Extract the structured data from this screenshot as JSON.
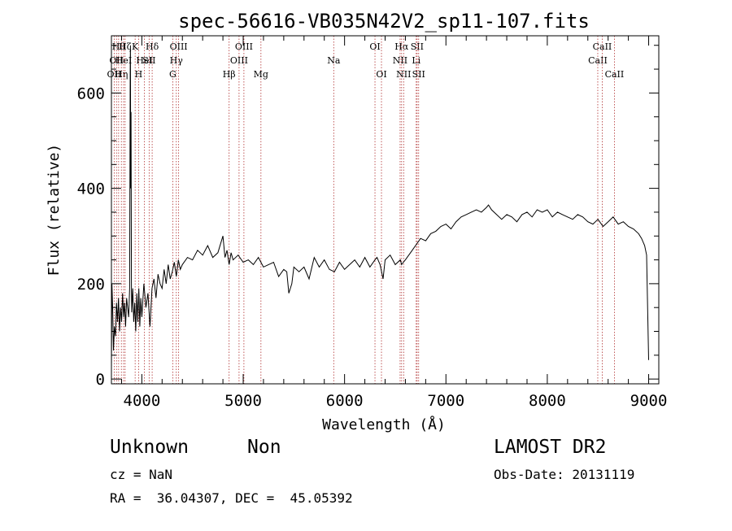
{
  "chart_data": {
    "type": "line",
    "title": "spec-56616-VB035N42V2_sp11-107.fits",
    "xlabel": "Wavelength (Å)",
    "ylabel": "Flux (relative)",
    "xlim": [
      3700,
      9100
    ],
    "ylim": [
      -10,
      720
    ],
    "x_ticks": [
      4000,
      5000,
      6000,
      7000,
      8000,
      9000
    ],
    "y_ticks": [
      0,
      200,
      400,
      600
    ],
    "grid": false,
    "series": [
      {
        "x": [
          3700,
          3705,
          3712,
          3720,
          3730,
          3740,
          3750,
          3760,
          3770,
          3780,
          3790,
          3800,
          3810,
          3820,
          3830,
          3840,
          3850,
          3860,
          3870,
          3880,
          3885,
          3888,
          3890,
          3893,
          3897,
          3900,
          3910,
          3920,
          3930,
          3940,
          3950,
          3960,
          3970,
          3980,
          3990,
          4000,
          4020,
          4040,
          4060,
          4080,
          4100,
          4120,
          4140,
          4160,
          4180,
          4200,
          4220,
          4240,
          4260,
          4280,
          4300,
          4320,
          4340,
          4360,
          4380,
          4400,
          4450,
          4500,
          4550,
          4600,
          4650,
          4700,
          4750,
          4800,
          4820,
          4840,
          4861,
          4880,
          4900,
          4950,
          5000,
          5050,
          5100,
          5150,
          5200,
          5250,
          5300,
          5350,
          5400,
          5430,
          5450,
          5480,
          5500,
          5550,
          5600,
          5650,
          5700,
          5750,
          5800,
          5850,
          5900,
          5950,
          6000,
          6050,
          6100,
          6150,
          6200,
          6250,
          6300,
          6320,
          6350,
          6380,
          6400,
          6450,
          6500,
          6550,
          6563,
          6580,
          6600,
          6650,
          6700,
          6750,
          6800,
          6850,
          6900,
          6950,
          7000,
          7050,
          7100,
          7150,
          7200,
          7250,
          7300,
          7350,
          7400,
          7420,
          7450,
          7500,
          7550,
          7600,
          7650,
          7700,
          7750,
          7800,
          7850,
          7900,
          7950,
          8000,
          8050,
          8100,
          8150,
          8200,
          8250,
          8300,
          8350,
          8400,
          8450,
          8500,
          8550,
          8600,
          8650,
          8700,
          8750,
          8800,
          8850,
          8900,
          8930,
          8960,
          8980,
          9000
        ],
        "values": [
          20,
          200,
          150,
          60,
          110,
          90,
          160,
          120,
          170,
          100,
          150,
          120,
          180,
          130,
          160,
          110,
          170,
          150,
          130,
          190,
          660,
          700,
          400,
          560,
          200,
          140,
          190,
          120,
          160,
          100,
          180,
          120,
          190,
          110,
          170,
          130,
          200,
          150,
          180,
          110,
          190,
          210,
          170,
          220,
          200,
          190,
          230,
          200,
          240,
          210,
          225,
          245,
          215,
          250,
          230,
          240,
          255,
          250,
          270,
          260,
          280,
          255,
          265,
          300,
          255,
          270,
          240,
          265,
          250,
          260,
          245,
          250,
          240,
          255,
          235,
          240,
          245,
          215,
          230,
          225,
          180,
          200,
          235,
          225,
          235,
          210,
          255,
          235,
          250,
          230,
          225,
          245,
          230,
          240,
          250,
          235,
          255,
          235,
          250,
          255,
          240,
          210,
          250,
          260,
          240,
          250,
          240,
          245,
          250,
          265,
          280,
          295,
          290,
          305,
          310,
          320,
          325,
          315,
          330,
          340,
          345,
          350,
          355,
          350,
          360,
          365,
          355,
          345,
          335,
          345,
          340,
          330,
          345,
          350,
          340,
          355,
          350,
          355,
          340,
          350,
          345,
          340,
          335,
          345,
          340,
          330,
          325,
          335,
          320,
          330,
          340,
          325,
          330,
          320,
          315,
          305,
          295,
          280,
          260,
          40
        ]
      }
    ],
    "line_markers": [
      {
        "wavelength": 3727,
        "label": "OII",
        "row": 2
      },
      {
        "wavelength": 3750,
        "label": "OII",
        "row": 1
      },
      {
        "wavelength": 3771,
        "label": "Hθ",
        "row": 0
      },
      {
        "wavelength": 3798,
        "label": "Hη",
        "row": 2
      },
      {
        "wavelength": 3820,
        "label": "HeI",
        "row": 1
      },
      {
        "wavelength": 3835,
        "label": "Hζ",
        "row": 0
      },
      {
        "wavelength": 3934,
        "label": "K",
        "row": 0
      },
      {
        "wavelength": 3968,
        "label": "H",
        "row": 2
      },
      {
        "wavelength": 4026,
        "label": "HeI",
        "row": 1
      },
      {
        "wavelength": 4072,
        "label": "SII",
        "row": 1
      },
      {
        "wavelength": 4102,
        "label": "Hδ",
        "row": 0
      },
      {
        "wavelength": 4305,
        "label": "G",
        "row": 2
      },
      {
        "wavelength": 4340,
        "label": "Hγ",
        "row": 1
      },
      {
        "wavelength": 4363,
        "label": "OIII",
        "row": 0
      },
      {
        "wavelength": 4861,
        "label": "Hβ",
        "row": 2
      },
      {
        "wavelength": 4959,
        "label": "OIII",
        "row": 1
      },
      {
        "wavelength": 5007,
        "label": "OIII",
        "row": 0
      },
      {
        "wavelength": 5175,
        "label": "Mg",
        "row": 2
      },
      {
        "wavelength": 5893,
        "label": "Na",
        "row": 1
      },
      {
        "wavelength": 6300,
        "label": "OI",
        "row": 0
      },
      {
        "wavelength": 6364,
        "label": "OI",
        "row": 2
      },
      {
        "wavelength": 6548,
        "label": "NII",
        "row": 1
      },
      {
        "wavelength": 6563,
        "label": "Hα",
        "row": 0
      },
      {
        "wavelength": 6583,
        "label": "NII",
        "row": 2
      },
      {
        "wavelength": 6707,
        "label": "Li",
        "row": 1
      },
      {
        "wavelength": 6716,
        "label": "SII",
        "row": 0
      },
      {
        "wavelength": 6731,
        "label": "SII",
        "row": 2
      },
      {
        "wavelength": 8498,
        "label": "CaII",
        "row": 1
      },
      {
        "wavelength": 8542,
        "label": "CaII",
        "row": 0
      },
      {
        "wavelength": 8662,
        "label": "CaII",
        "row": 2
      }
    ]
  },
  "info": {
    "object_class": "Unknown",
    "subclass": "Non",
    "survey": "LAMOST DR2",
    "redshift": "cz = NaN",
    "obs_date": "Obs-Date: 20131119",
    "coords": "RA =  36.04307, DEC =  45.05392"
  }
}
